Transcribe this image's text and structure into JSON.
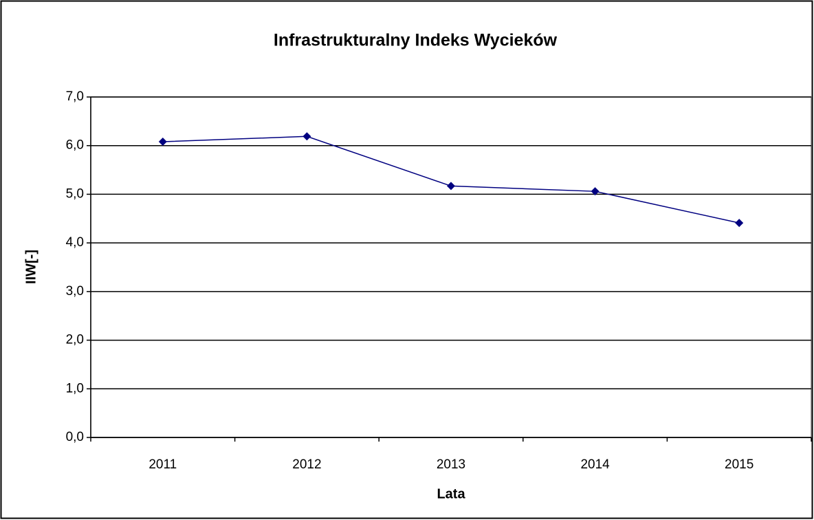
{
  "chart_data": {
    "type": "line",
    "title": "Infrastrukturalny Indeks Wycieków",
    "x_label": "Lata",
    "y_label": "IIW[-]",
    "categories": [
      "2011",
      "2012",
      "2013",
      "2014",
      "2015"
    ],
    "series": [
      {
        "name": "IIW",
        "color": "#000080",
        "values": [
          6.08,
          6.19,
          5.17,
          5.06,
          4.41
        ]
      }
    ],
    "ylim": [
      0,
      7
    ],
    "yticks": [
      {
        "value": 0,
        "label": "0,0"
      },
      {
        "value": 1,
        "label": "1,0"
      },
      {
        "value": 2,
        "label": "2,0"
      },
      {
        "value": 3,
        "label": "3,0"
      },
      {
        "value": 4,
        "label": "4,0"
      },
      {
        "value": 5,
        "label": "5,0"
      },
      {
        "value": 6,
        "label": "6,0"
      },
      {
        "value": 7,
        "label": "7,0"
      }
    ],
    "grid": true
  }
}
